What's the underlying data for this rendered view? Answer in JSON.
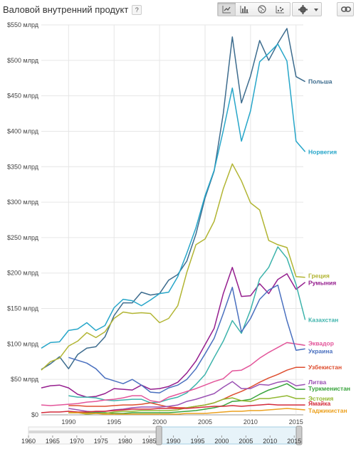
{
  "header": {
    "title": "Валовой внутренний продукт",
    "help": "?"
  },
  "colors": {
    "Польша": "#3d6c8e",
    "Норвегия": "#27a6c9",
    "Греция": "#b2b533",
    "Румыния": "#951e8e",
    "Казахстан": "#3cb3ab",
    "Эквадор": "#e3559a",
    "Украина": "#4a70bf",
    "Узбекистан": "#de4e2f",
    "Литва": "#9b52b4",
    "Туркменистан": "#38a33c",
    "Эстония": "#92b832",
    "Ямайка": "#d32b3b",
    "Таджикистан": "#eca11f"
  },
  "chart_data": {
    "type": "line",
    "title": "Валовой внутренний продукт",
    "xlim": [
      1987,
      2015.8
    ],
    "ylim": [
      0,
      550
    ],
    "yticks": [
      0,
      50,
      100,
      150,
      200,
      250,
      300,
      350,
      400,
      450,
      500,
      550
    ],
    "ytick_labels": [
      "$0",
      "$50 млрд",
      "$100 млрд",
      "$150 млрд",
      "$200 млрд",
      "$250 млрд",
      "$300 млрд",
      "$350 млрд",
      "$400 млрд",
      "$450 млрд",
      "$500 млрд",
      "$550 млрд"
    ],
    "xticks": [
      1990,
      1995,
      2000,
      2005,
      2010,
      2015
    ],
    "grid": true,
    "legend": "right-inline",
    "series": [
      {
        "name": "Польша",
        "x": [
          1987,
          1988,
          1989,
          1990,
          1991,
          1992,
          1993,
          1994,
          1995,
          1996,
          1997,
          1998,
          1999,
          2000,
          2001,
          2002,
          2003,
          2004,
          2005,
          2006,
          2007,
          2008,
          2009,
          2010,
          2011,
          2012,
          2013,
          2014,
          2015,
          2016
        ],
        "values": [
          64,
          72,
          82,
          65,
          85,
          94,
          96,
          110,
          140,
          158,
          158,
          173,
          169,
          171,
          190,
          198,
          217,
          255,
          306,
          344,
          425,
          533,
          440,
          478,
          528,
          500,
          524,
          545,
          477,
          470
        ]
      },
      {
        "name": "Норвегия",
        "x": [
          1987,
          1988,
          1989,
          1990,
          1991,
          1992,
          1993,
          1994,
          1995,
          1996,
          1997,
          1998,
          1999,
          2000,
          2001,
          2002,
          2003,
          2004,
          2005,
          2006,
          2007,
          2008,
          2009,
          2010,
          2011,
          2012,
          2013,
          2014,
          2015,
          2016
        ],
        "values": [
          94,
          102,
          103,
          119,
          121,
          130,
          119,
          126,
          151,
          163,
          161,
          154,
          162,
          171,
          173,
          195,
          228,
          264,
          309,
          345,
          401,
          461,
          386,
          429,
          498,
          510,
          523,
          499,
          386,
          371
        ]
      },
      {
        "name": "Греция",
        "x": [
          1987,
          1988,
          1989,
          1990,
          1991,
          1992,
          1993,
          1994,
          1995,
          1996,
          1997,
          1998,
          1999,
          2000,
          2001,
          2002,
          2003,
          2004,
          2005,
          2006,
          2007,
          2008,
          2009,
          2010,
          2011,
          2012,
          2013,
          2014,
          2015,
          2016
        ],
        "values": [
          63,
          75,
          80,
          97,
          104,
          116,
          109,
          117,
          136,
          145,
          143,
          144,
          143,
          130,
          136,
          154,
          201,
          240,
          248,
          273,
          319,
          354,
          330,
          299,
          289,
          246,
          240,
          236,
          195,
          194
        ]
      },
      {
        "name": "Румыния",
        "x": [
          1987,
          1988,
          1989,
          1990,
          1991,
          1992,
          1993,
          1994,
          1995,
          1996,
          1997,
          1998,
          1999,
          2000,
          2001,
          2002,
          2003,
          2004,
          2005,
          2006,
          2007,
          2008,
          2009,
          2010,
          2011,
          2012,
          2013,
          2014,
          2015,
          2016
        ],
        "values": [
          38,
          41,
          42,
          38,
          29,
          25,
          26,
          30,
          37,
          36,
          35,
          42,
          36,
          37,
          40,
          46,
          59,
          76,
          99,
          122,
          171,
          208,
          167,
          168,
          185,
          171,
          191,
          199,
          177,
          187
        ]
      },
      {
        "name": "Казахстан",
        "x": [
          1990,
          1991,
          1992,
          1993,
          1994,
          1995,
          1996,
          1997,
          1998,
          1999,
          2000,
          2001,
          2002,
          2003,
          2004,
          2005,
          2006,
          2007,
          2008,
          2009,
          2010,
          2011,
          2012,
          2013,
          2014,
          2015,
          2016
        ],
        "values": [
          27,
          25,
          25,
          24,
          21,
          20,
          21,
          22,
          22,
          17,
          18,
          22,
          25,
          31,
          43,
          57,
          81,
          104,
          133,
          115,
          148,
          192,
          208,
          237,
          221,
          184,
          134
        ]
      },
      {
        "name": "Эквадор",
        "x": [
          1987,
          1988,
          1989,
          1990,
          1991,
          1992,
          1993,
          1994,
          1995,
          1996,
          1997,
          1998,
          1999,
          2000,
          2001,
          2002,
          2003,
          2004,
          2005,
          2006,
          2007,
          2008,
          2009,
          2010,
          2011,
          2012,
          2013,
          2014,
          2015,
          2016
        ],
        "values": [
          14,
          13,
          14,
          15,
          16,
          18,
          19,
          21,
          22,
          24,
          27,
          27,
          20,
          18,
          25,
          29,
          33,
          37,
          42,
          47,
          51,
          62,
          63,
          70,
          80,
          88,
          95,
          102,
          100,
          98
        ]
      },
      {
        "name": "Украина",
        "x": [
          1990,
          1991,
          1992,
          1993,
          1994,
          1995,
          1996,
          1997,
          1998,
          1999,
          2000,
          2001,
          2002,
          2003,
          2004,
          2005,
          2006,
          2007,
          2008,
          2009,
          2010,
          2011,
          2012,
          2013,
          2014,
          2015,
          2016
        ],
        "values": [
          81,
          77,
          73,
          65,
          52,
          48,
          44,
          50,
          42,
          32,
          31,
          38,
          42,
          50,
          65,
          86,
          108,
          143,
          180,
          117,
          136,
          163,
          176,
          183,
          133,
          91,
          93
        ]
      },
      {
        "name": "Узбекистан",
        "x": [
          1990,
          1991,
          1992,
          1993,
          1994,
          1995,
          1996,
          1997,
          1998,
          1999,
          2000,
          2001,
          2002,
          2003,
          2004,
          2005,
          2006,
          2007,
          2008,
          2009,
          2010,
          2011,
          2012,
          2013,
          2014,
          2015,
          2016
        ],
        "values": [
          13,
          13,
          12,
          12,
          12,
          13,
          14,
          14,
          15,
          17,
          14,
          11,
          10,
          10,
          12,
          14,
          17,
          22,
          28,
          33,
          39,
          46,
          52,
          57,
          63,
          67,
          67
        ]
      },
      {
        "name": "Литва",
        "x": [
          1990,
          1991,
          1992,
          1993,
          1994,
          1995,
          1996,
          1997,
          1998,
          1999,
          2000,
          2001,
          2002,
          2003,
          2004,
          2005,
          2006,
          2007,
          2008,
          2009,
          2010,
          2011,
          2012,
          2013,
          2014,
          2015,
          2016
        ],
        "values": [
          9,
          7,
          5,
          4,
          5,
          7,
          8,
          10,
          11,
          11,
          11,
          12,
          14,
          19,
          22,
          26,
          30,
          39,
          47,
          37,
          37,
          43,
          42,
          46,
          48,
          41,
          43
        ]
      },
      {
        "name": "Туркменистан",
        "x": [
          1990,
          1991,
          1992,
          1993,
          1994,
          1995,
          1996,
          1997,
          1998,
          1999,
          2000,
          2001,
          2002,
          2003,
          2004,
          2005,
          2006,
          2007,
          2008,
          2009,
          2010,
          2011,
          2012,
          2013,
          2014,
          2015,
          2016
        ],
        "values": [
          3,
          3,
          3,
          3,
          3,
          2,
          2,
          3,
          3,
          3,
          3,
          3,
          4,
          5,
          6,
          8,
          10,
          13,
          19,
          20,
          22,
          29,
          35,
          39,
          44,
          36,
          36
        ]
      },
      {
        "name": "Эстония",
        "x": [
          1990,
          1991,
          1992,
          1993,
          1994,
          1995,
          1996,
          1997,
          1998,
          1999,
          2000,
          2001,
          2002,
          2003,
          2004,
          2005,
          2006,
          2007,
          2008,
          2009,
          2010,
          2011,
          2012,
          2013,
          2014,
          2015,
          2016
        ],
        "values": [
          3,
          3,
          1,
          2,
          2,
          4,
          5,
          5,
          6,
          6,
          6,
          6,
          7,
          10,
          12,
          14,
          17,
          22,
          24,
          20,
          19,
          23,
          23,
          25,
          27,
          23,
          23
        ]
      },
      {
        "name": "Ямайка",
        "x": [
          1987,
          1988,
          1989,
          1990,
          1991,
          1992,
          1993,
          1994,
          1995,
          1996,
          1997,
          1998,
          1999,
          2000,
          2001,
          2002,
          2003,
          2004,
          2005,
          2006,
          2007,
          2008,
          2009,
          2010,
          2011,
          2012,
          2013,
          2014,
          2015,
          2016
        ],
        "values": [
          3,
          4,
          4,
          5,
          4,
          4,
          5,
          5,
          6,
          7,
          8,
          8,
          8,
          9,
          9,
          9,
          9,
          10,
          11,
          12,
          12,
          13,
          12,
          13,
          14,
          15,
          14,
          14,
          14,
          14
        ]
      },
      {
        "name": "Таджикистан",
        "x": [
          1990,
          1991,
          1992,
          1993,
          1994,
          1995,
          1996,
          1997,
          1998,
          1999,
          2000,
          2001,
          2002,
          2003,
          2004,
          2005,
          2006,
          2007,
          2008,
          2009,
          2010,
          2011,
          2012,
          2013,
          2014,
          2015,
          2016
        ],
        "values": [
          3,
          3,
          2,
          2,
          1,
          1,
          1,
          1,
          1,
          1,
          1,
          1,
          1,
          2,
          2,
          2,
          3,
          4,
          5,
          5,
          6,
          6,
          7,
          8,
          9,
          8,
          7
        ]
      }
    ],
    "timeline": {
      "ticks": [
        1960,
        1965,
        1970,
        1975,
        1980,
        1985,
        1990,
        1995,
        2000,
        2005,
        2010,
        2015
      ],
      "range": [
        1960,
        2016
      ],
      "window": [
        1987,
        2016
      ]
    }
  }
}
